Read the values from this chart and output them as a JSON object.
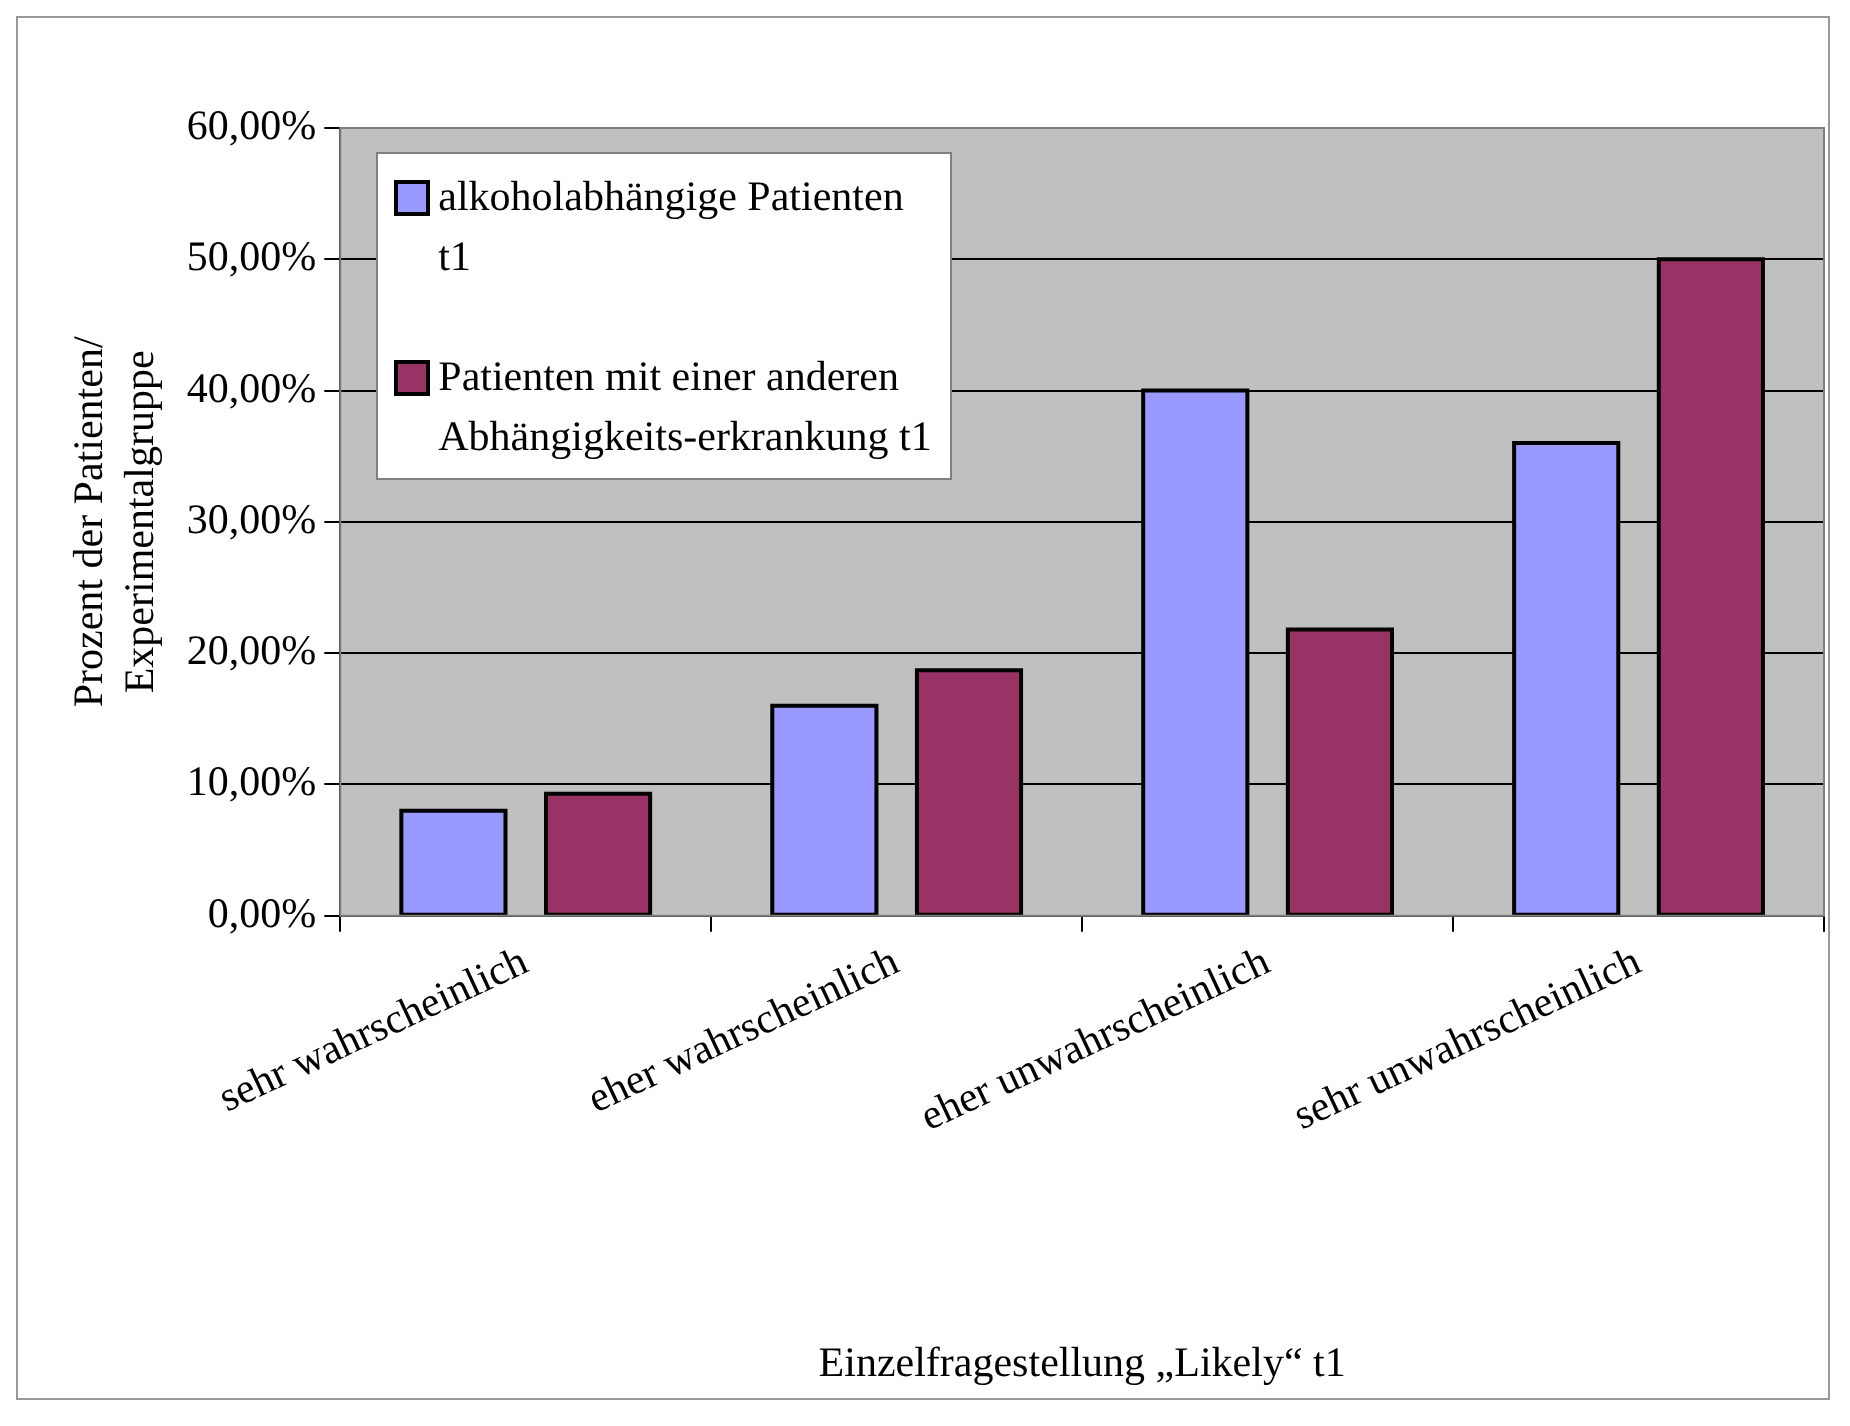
{
  "chart_data": {
    "type": "bar",
    "xlabel": "Einzelfragestellung „Likely“ t1",
    "ylabel": "Prozent der Patienten/\nExperimentalgruppe",
    "categories": [
      "sehr wahrscheinlich",
      "eher wahrscheinlich",
      "eher unwahrscheinlich",
      "sehr unwahrscheinlich"
    ],
    "series": [
      {
        "name": "alkoholabhängige Patienten t1",
        "color": "#9999ff",
        "values": [
          8,
          16,
          40,
          36
        ]
      },
      {
        "name": "Patienten mit einer anderen Abhängigkeits-erkrankung t1",
        "color": "#993366",
        "values": [
          9.3,
          18.7,
          21.8,
          50
        ]
      }
    ],
    "ylim": [
      0,
      60
    ],
    "yticks": [
      {
        "value": 0,
        "label": "0,00%"
      },
      {
        "value": 10,
        "label": "10,00%"
      },
      {
        "value": 20,
        "label": "20,00%"
      },
      {
        "value": 30,
        "label": "30,00%"
      },
      {
        "value": 40,
        "label": "40,00%"
      },
      {
        "value": 50,
        "label": "50,00%"
      },
      {
        "value": 60,
        "label": "60,00%"
      }
    ],
    "grid": "y",
    "legend": "top left"
  }
}
